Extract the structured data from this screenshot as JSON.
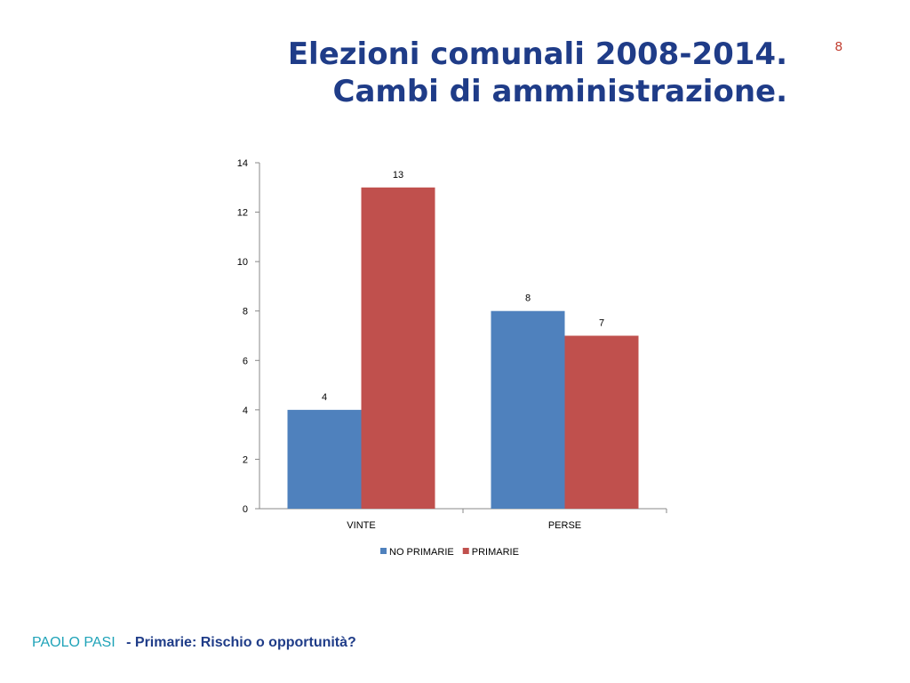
{
  "slide": {
    "title_line1": "Elezioni comunali 2008-2014.",
    "title_line2": "Cambi di amministrazione.",
    "page_number": "8"
  },
  "footer": {
    "author": "PAOLO PASI",
    "subtitle": "- Primarie: Rischio o opportunità?"
  },
  "chart_data": {
    "type": "bar",
    "categories": [
      "VINTE",
      "PERSE"
    ],
    "series": [
      {
        "name": "NO PRIMARIE",
        "values": [
          4,
          8
        ],
        "color": "#4f81bd"
      },
      {
        "name": "PRIMARIE",
        "values": [
          13,
          7
        ],
        "color": "#c0504d"
      }
    ],
    "ylim": [
      0,
      14
    ],
    "yticks": [
      0,
      2,
      4,
      6,
      8,
      10,
      12,
      14
    ],
    "grid": false,
    "data_labels": true,
    "legend_position": "bottom"
  }
}
